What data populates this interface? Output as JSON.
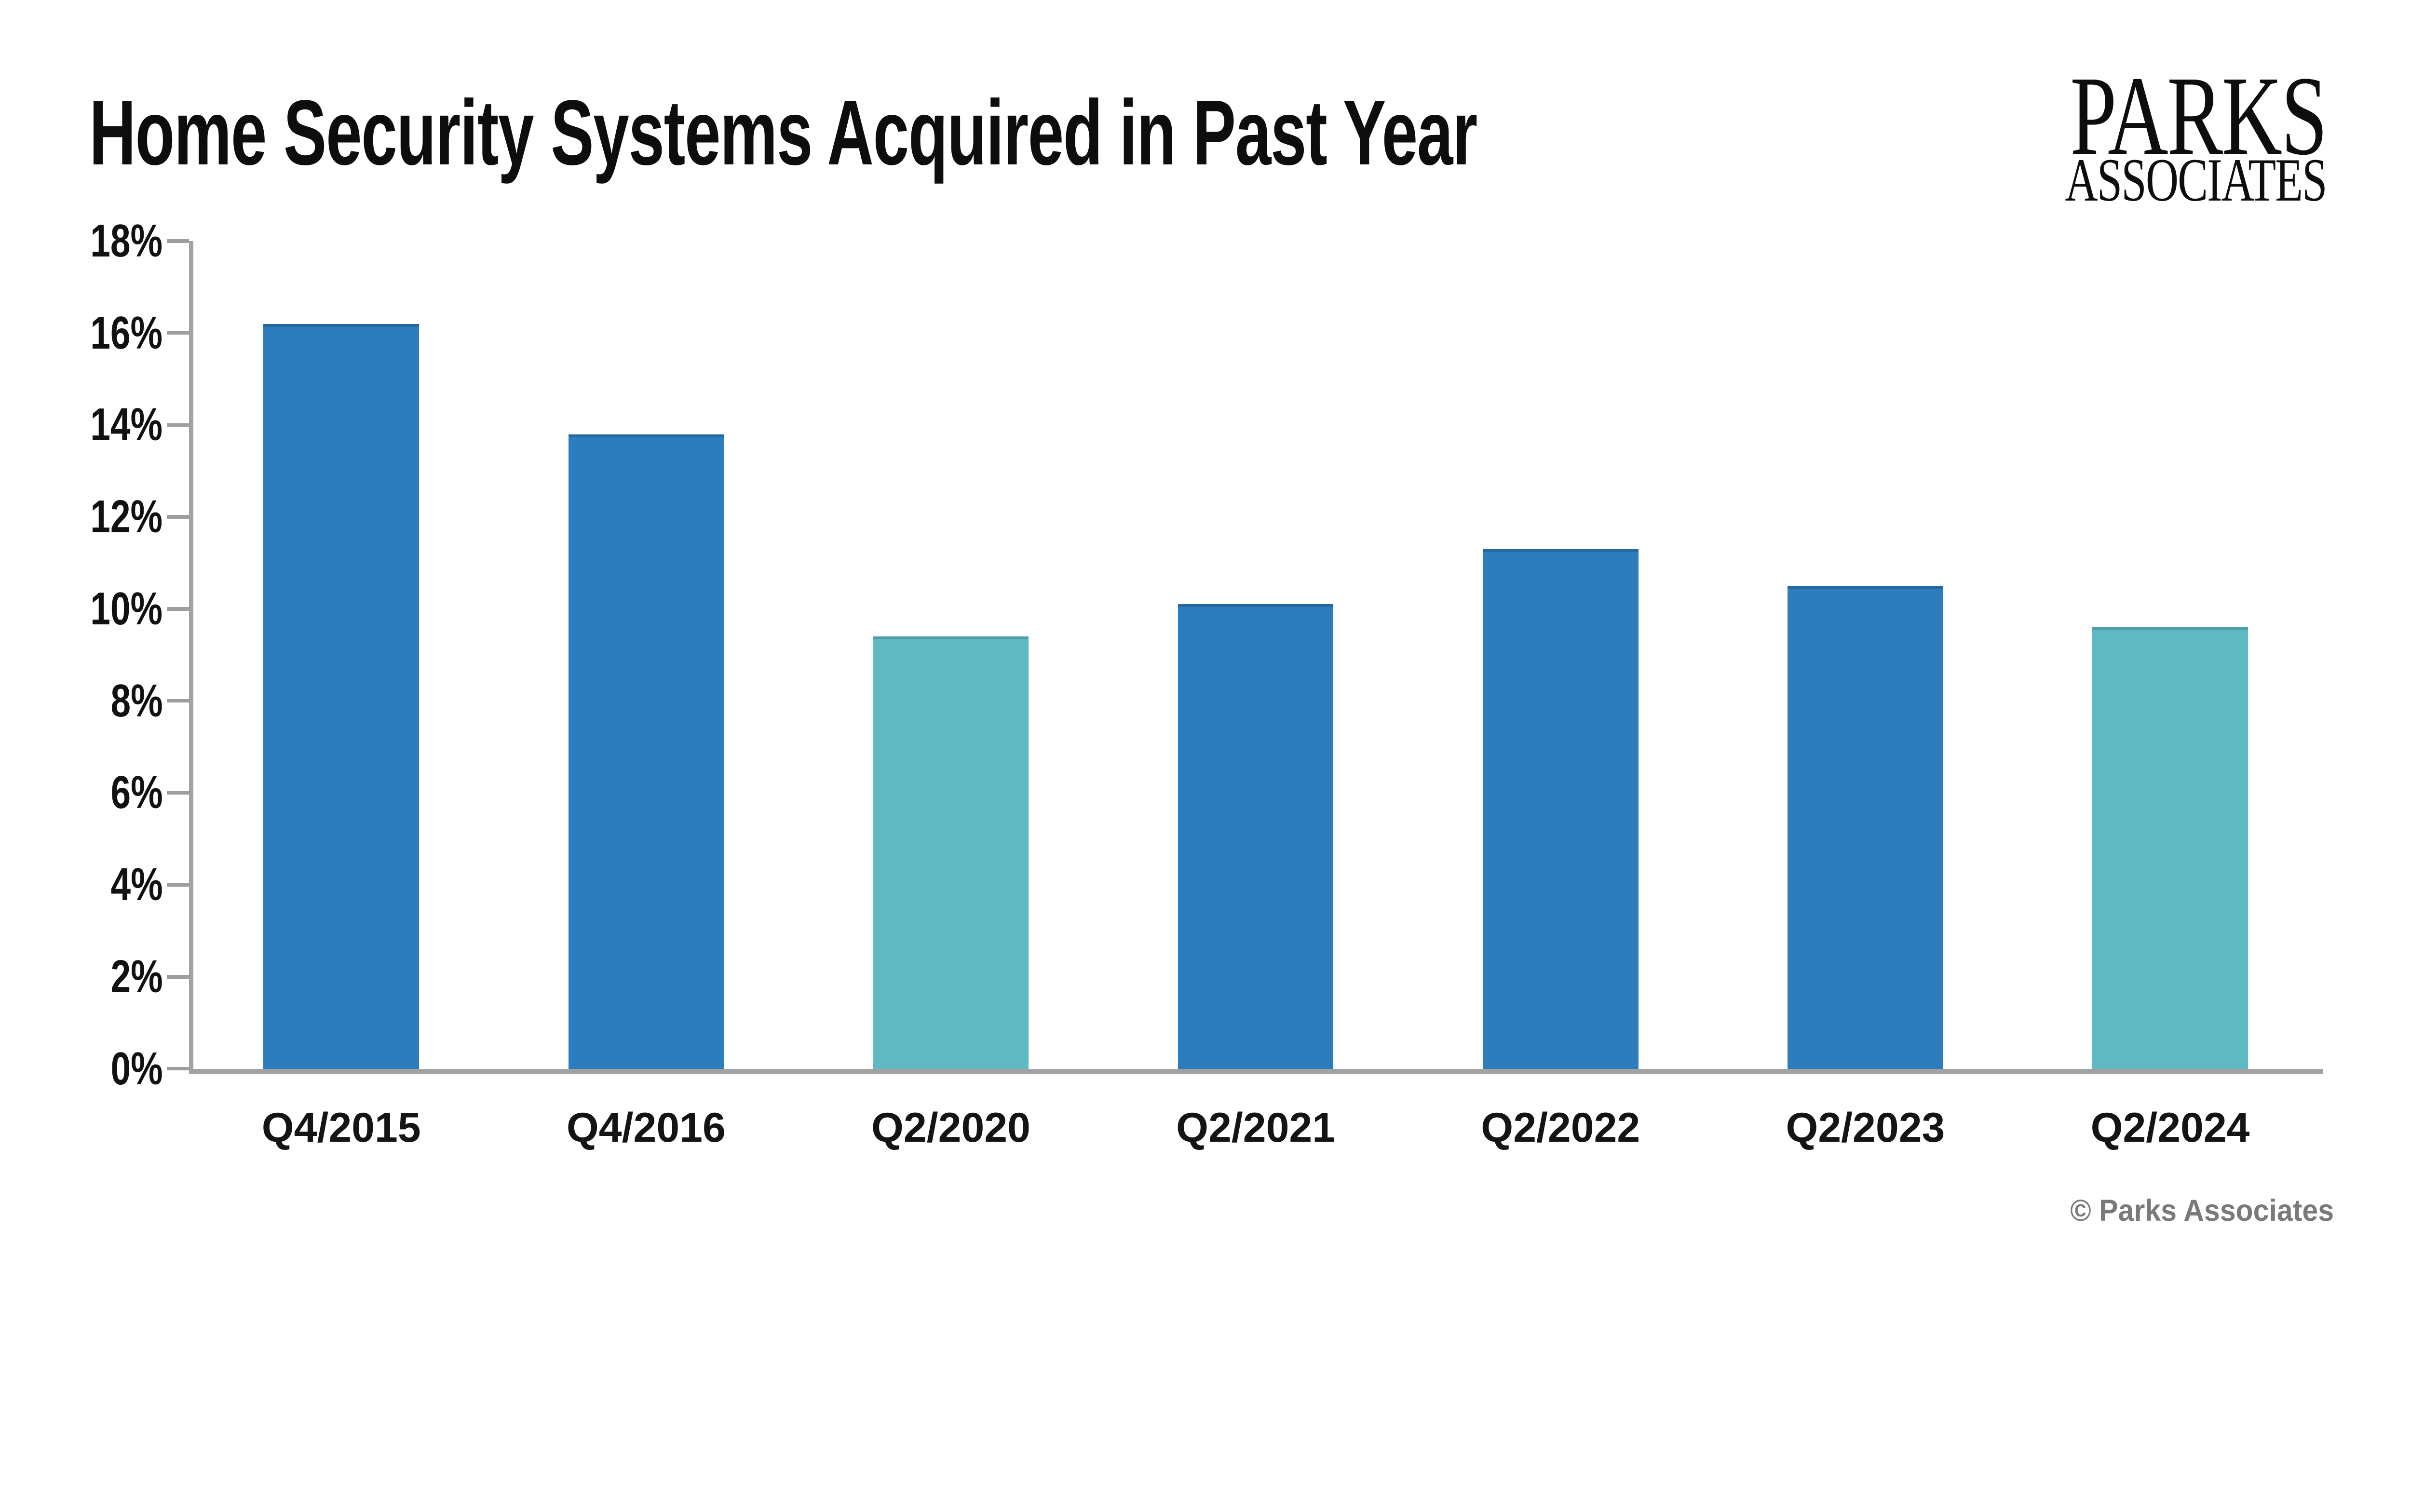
{
  "page": {
    "background": "#FFFFFF"
  },
  "header": {
    "title": "Home Security Systems Acquired in Past Year"
  },
  "logo": {
    "line1": "PARKS",
    "line2": "ASSOCIATES"
  },
  "footer": {
    "copyright": "© Parks Associates"
  },
  "chart_data": {
    "type": "bar",
    "title": "Home Security Systems Acquired in Past Year",
    "categories": [
      "Q4/2015",
      "Q4/2016",
      "Q2/2020",
      "Q2/2021",
      "Q2/2022",
      "Q2/2023",
      "Q2/2024"
    ],
    "values": [
      16.2,
      13.8,
      9.4,
      10.1,
      11.3,
      10.5,
      9.6
    ],
    "unit": "%",
    "bar_color_keys": [
      "default",
      "default",
      "highlight",
      "default",
      "default",
      "default",
      "highlight"
    ],
    "colors": {
      "default": "#2B7DBD",
      "highlight": "#5FB9C3",
      "axis": "#A2A2A2",
      "tick": "#9E9E9E",
      "tick_label": "#111111",
      "title": "#0D0D0D",
      "copyright": "#7A7A7A"
    },
    "ylim": [
      0,
      18
    ],
    "y_ticks_percent": [
      0,
      2,
      4,
      6,
      8,
      10,
      12,
      14,
      16,
      18
    ],
    "y_tick_labels": [
      "0%",
      "2%",
      "4%",
      "6%",
      "8%",
      "10%",
      "12%",
      "14%",
      "16%",
      "18%"
    ],
    "xlabel": "",
    "ylabel": "",
    "grid": false,
    "legend": "none"
  }
}
